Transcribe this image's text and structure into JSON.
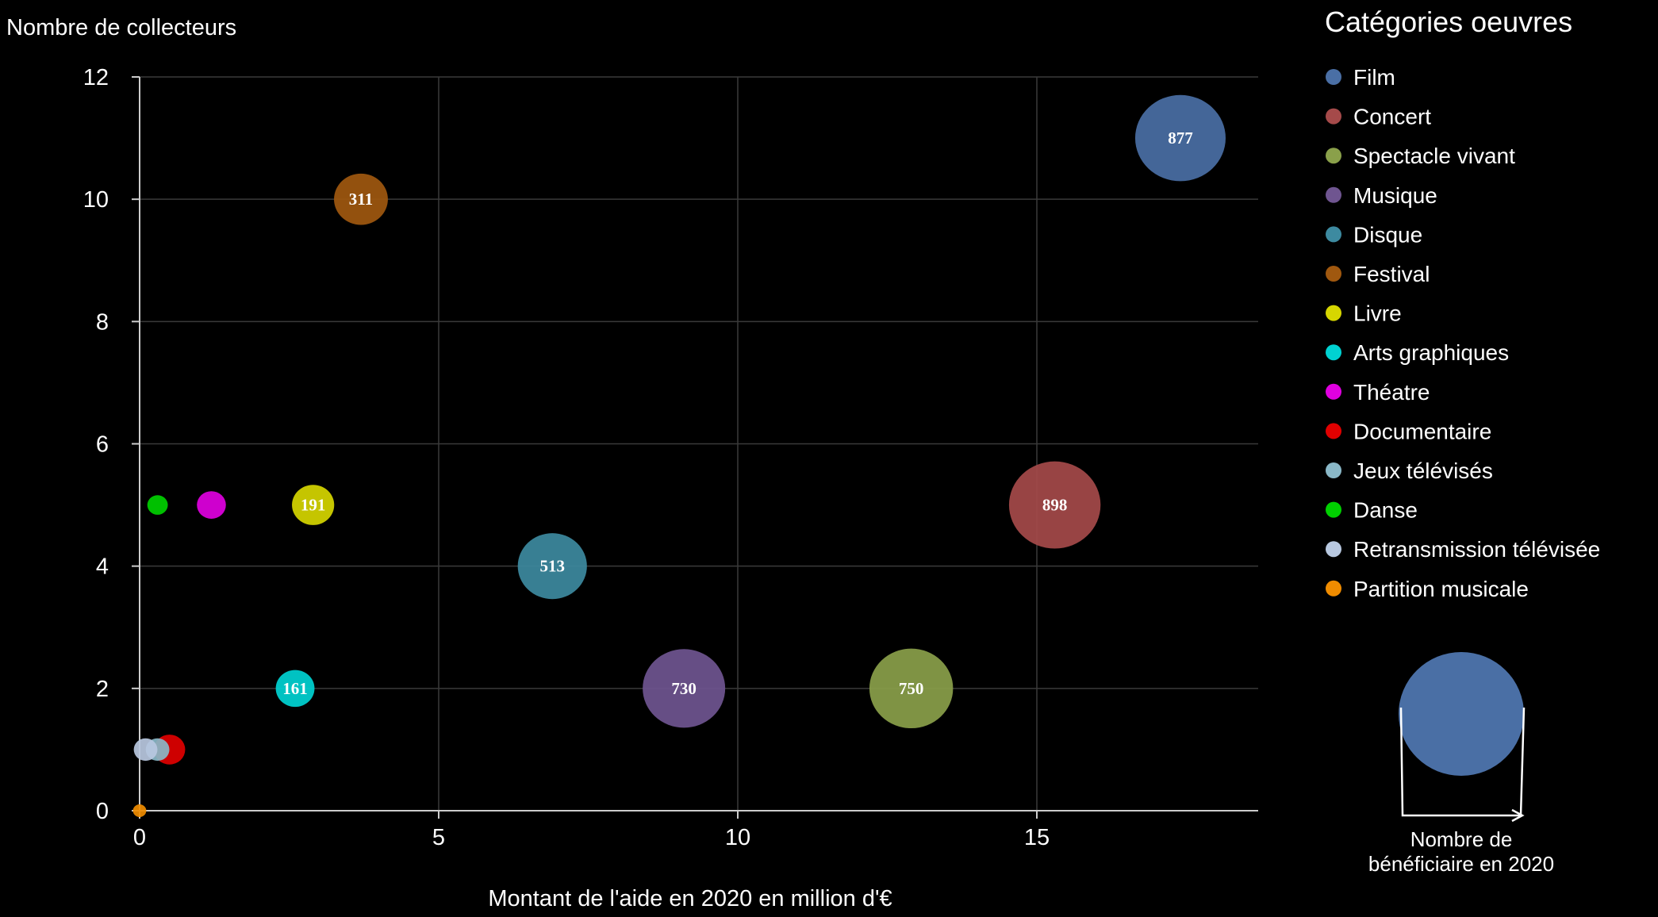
{
  "chart_data": {
    "type": "bubble",
    "ylabel": "Nombre de collecteurs",
    "xlabel": "Montant de l'aide en 2020 en million d'€",
    "xlim": [
      0,
      18.7
    ],
    "ylim": [
      0,
      12
    ],
    "xticks": [
      0,
      5,
      10,
      15
    ],
    "yticks": [
      0,
      2,
      4,
      6,
      8,
      10,
      12
    ],
    "grid": true,
    "legend_title": "Catégories oeuvres",
    "legend_position": "right",
    "size_legend_label_line1": "Nombre de",
    "size_legend_label_line2": "bénéficiaire en 2020",
    "size_legend_color": "#4a6fa5",
    "series": [
      {
        "name": "Film",
        "color": "#4a6fa5",
        "x": 17.4,
        "y": 11,
        "size": 877,
        "label": "877"
      },
      {
        "name": "Concert",
        "color": "#a54a4a",
        "x": 15.3,
        "y": 5,
        "size": 898,
        "label": "898"
      },
      {
        "name": "Spectacle vivant",
        "color": "#8aa04a",
        "x": 12.9,
        "y": 2,
        "size": 750,
        "label": "750"
      },
      {
        "name": "Musique",
        "color": "#6f5590",
        "x": 9.1,
        "y": 2,
        "size": 730,
        "label": "730"
      },
      {
        "name": "Disque",
        "color": "#3d8aa0",
        "x": 6.9,
        "y": 4,
        "size": 513,
        "label": "513"
      },
      {
        "name": "Festival",
        "color": "#a0580f",
        "x": 3.7,
        "y": 10,
        "size": 311,
        "label": "311"
      },
      {
        "name": "Livre",
        "color": "#d6d600",
        "x": 2.9,
        "y": 5,
        "size": 191,
        "label": "191"
      },
      {
        "name": "Arts graphiques",
        "color": "#00d2d2",
        "x": 2.6,
        "y": 2,
        "size": 161,
        "label": "161"
      },
      {
        "name": "Théatre",
        "color": "#e000e0",
        "x": 1.2,
        "y": 5,
        "size": 90,
        "label": ""
      },
      {
        "name": "Documentaire",
        "color": "#e00000",
        "x": 0.5,
        "y": 1,
        "size": 105,
        "label": ""
      },
      {
        "name": "Jeux télévisés",
        "color": "#8ab8c8",
        "x": 0.3,
        "y": 1,
        "size": 60,
        "label": ""
      },
      {
        "name": "Danse",
        "color": "#00d000",
        "x": 0.3,
        "y": 5,
        "size": 45,
        "label": ""
      },
      {
        "name": "Retransmission télévisée",
        "color": "#b8c8e0",
        "x": 0.1,
        "y": 1,
        "size": 60,
        "label": ""
      },
      {
        "name": "Partition musicale",
        "color": "#f08c00",
        "x": 0.0,
        "y": 0,
        "size": 15,
        "label": ""
      }
    ]
  }
}
